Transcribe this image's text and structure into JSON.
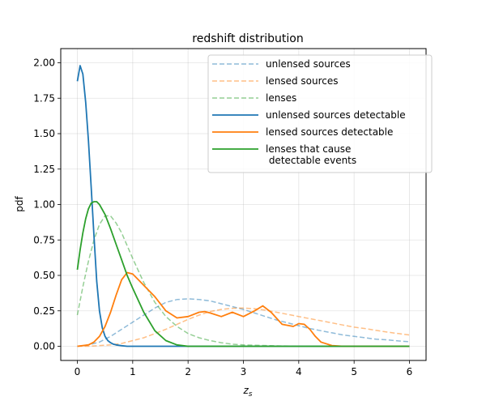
{
  "chart_data": {
    "type": "line",
    "title": "redshift distribution",
    "xlabel": "z_s",
    "ylabel": "pdf",
    "xlim": [
      -0.3,
      6.3
    ],
    "ylim": [
      -0.1,
      2.1
    ],
    "xticks": [
      0,
      1,
      2,
      3,
      4,
      5,
      6
    ],
    "xtick_labels": [
      "0",
      "1",
      "2",
      "3",
      "4",
      "5",
      "6"
    ],
    "yticks": [
      0.0,
      0.25,
      0.5,
      0.75,
      1.0,
      1.25,
      1.5,
      1.75,
      2.0
    ],
    "ytick_labels": [
      "0.00",
      "0.25",
      "0.50",
      "0.75",
      "1.00",
      "1.25",
      "1.50",
      "1.75",
      "2.00"
    ],
    "grid": true,
    "legend_position": "top-right",
    "series": [
      {
        "name": "unlensed sources",
        "color": "#1f77b4",
        "style": "dashed",
        "x": [
          0,
          0.2,
          0.4,
          0.6,
          0.8,
          1.0,
          1.2,
          1.4,
          1.6,
          1.8,
          2.0,
          2.2,
          2.4,
          2.6,
          2.8,
          3.0,
          3.2,
          3.4,
          3.6,
          3.8,
          4.0,
          4.2,
          4.4,
          4.6,
          4.8,
          5.0,
          5.2,
          5.4,
          5.6,
          5.8,
          6.0
        ],
        "y": [
          0.0,
          0.01,
          0.03,
          0.07,
          0.12,
          0.17,
          0.22,
          0.27,
          0.31,
          0.33,
          0.335,
          0.33,
          0.32,
          0.3,
          0.28,
          0.26,
          0.235,
          0.21,
          0.185,
          0.165,
          0.145,
          0.125,
          0.11,
          0.095,
          0.08,
          0.07,
          0.06,
          0.05,
          0.045,
          0.038,
          0.032
        ]
      },
      {
        "name": "lensed sources",
        "color": "#ff7f0e",
        "style": "dashed",
        "x": [
          0,
          0.2,
          0.4,
          0.6,
          0.8,
          1.0,
          1.2,
          1.4,
          1.6,
          1.8,
          2.0,
          2.2,
          2.4,
          2.6,
          2.8,
          3.0,
          3.2,
          3.4,
          3.6,
          3.8,
          4.0,
          4.2,
          4.4,
          4.6,
          4.8,
          5.0,
          5.2,
          5.4,
          5.6,
          5.8,
          6.0
        ],
        "y": [
          0.0,
          0.0,
          0.005,
          0.01,
          0.02,
          0.04,
          0.06,
          0.09,
          0.12,
          0.155,
          0.19,
          0.22,
          0.245,
          0.26,
          0.268,
          0.27,
          0.265,
          0.255,
          0.24,
          0.225,
          0.21,
          0.195,
          0.18,
          0.165,
          0.15,
          0.135,
          0.125,
          0.112,
          0.1,
          0.09,
          0.08
        ]
      },
      {
        "name": "lenses",
        "color": "#2ca02c",
        "style": "dashed",
        "x": [
          0,
          0.1,
          0.2,
          0.3,
          0.4,
          0.5,
          0.6,
          0.7,
          0.8,
          0.9,
          1.0,
          1.2,
          1.4,
          1.6,
          1.8,
          2.0,
          2.2,
          2.4,
          2.6,
          2.8,
          3.0,
          3.5,
          4.0,
          5.0,
          6.0
        ],
        "y": [
          0.22,
          0.42,
          0.6,
          0.75,
          0.86,
          0.92,
          0.92,
          0.87,
          0.8,
          0.71,
          0.62,
          0.45,
          0.31,
          0.21,
          0.14,
          0.09,
          0.06,
          0.04,
          0.025,
          0.015,
          0.01,
          0.004,
          0.0,
          0.0,
          0.0
        ]
      },
      {
        "name": "unlensed sources detectable",
        "color": "#1f77b4",
        "style": "solid",
        "x": [
          0,
          0.05,
          0.1,
          0.15,
          0.2,
          0.25,
          0.3,
          0.35,
          0.4,
          0.45,
          0.5,
          0.55,
          0.6,
          0.65,
          0.7,
          0.8,
          0.9,
          1.0,
          1.5,
          2.0,
          3.0,
          4.0,
          5.0,
          6.0
        ],
        "y": [
          1.87,
          1.98,
          1.92,
          1.72,
          1.45,
          1.12,
          0.78,
          0.46,
          0.25,
          0.13,
          0.07,
          0.04,
          0.025,
          0.015,
          0.01,
          0.004,
          0.0,
          0.0,
          0.0,
          0.0,
          0.0,
          0.0,
          0.0,
          0.0
        ]
      },
      {
        "name": "lensed sources detectable",
        "color": "#ff7f0e",
        "style": "solid",
        "x": [
          0,
          0.2,
          0.3,
          0.4,
          0.5,
          0.6,
          0.7,
          0.8,
          0.9,
          1.0,
          1.1,
          1.2,
          1.4,
          1.6,
          1.8,
          2.0,
          2.2,
          2.3,
          2.4,
          2.6,
          2.8,
          3.0,
          3.2,
          3.35,
          3.5,
          3.7,
          3.9,
          4.0,
          4.1,
          4.2,
          4.3,
          4.4,
          4.6,
          4.8,
          5.0,
          6.0
        ],
        "y": [
          0.0,
          0.01,
          0.03,
          0.07,
          0.14,
          0.24,
          0.36,
          0.47,
          0.52,
          0.51,
          0.47,
          0.43,
          0.35,
          0.25,
          0.2,
          0.21,
          0.24,
          0.245,
          0.235,
          0.21,
          0.24,
          0.21,
          0.25,
          0.285,
          0.24,
          0.155,
          0.14,
          0.16,
          0.155,
          0.12,
          0.07,
          0.03,
          0.005,
          0.0,
          0.0,
          0.0
        ]
      },
      {
        "name": "lenses that cause\n detectable events",
        "color": "#2ca02c",
        "style": "solid",
        "x": [
          0,
          0.05,
          0.1,
          0.15,
          0.2,
          0.25,
          0.3,
          0.35,
          0.4,
          0.5,
          0.6,
          0.7,
          0.8,
          0.9,
          1.0,
          1.2,
          1.4,
          1.6,
          1.8,
          2.0,
          3.0,
          4.0,
          5.0,
          6.0
        ],
        "y": [
          0.54,
          0.68,
          0.8,
          0.9,
          0.97,
          1.01,
          1.02,
          1.02,
          1.0,
          0.93,
          0.83,
          0.72,
          0.61,
          0.5,
          0.41,
          0.24,
          0.11,
          0.04,
          0.01,
          0.0,
          0.0,
          0.0,
          0.0,
          0.0
        ]
      }
    ]
  }
}
